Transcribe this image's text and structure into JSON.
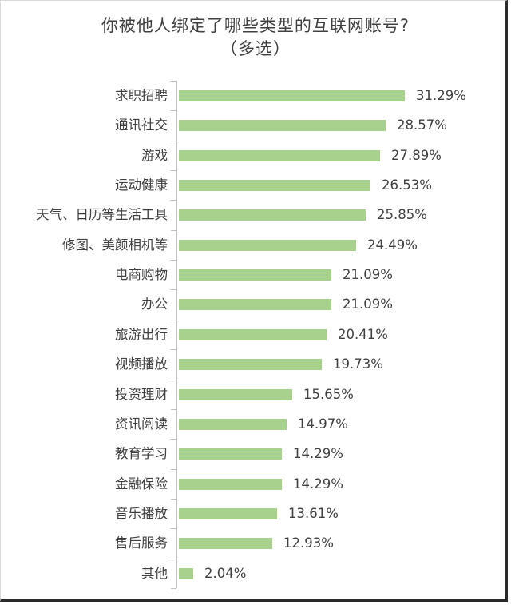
{
  "chart_data": {
    "type": "bar",
    "orientation": "horizontal",
    "title": "你被他人绑定了哪些类型的互联网账号?",
    "subtitle": "（多选）",
    "xlabel": "",
    "ylabel": "",
    "grid": false,
    "legend": null,
    "bar_color": "#a9d18e",
    "value_format": "percent",
    "xlim": [
      0,
      35
    ],
    "categories": [
      "求职招聘",
      "通讯社交",
      "游戏",
      "运动健康",
      "天气、日历等生活工具",
      "修图、美颜相机等",
      "电商购物",
      "办公",
      "旅游出行",
      "视频播放",
      "投资理财",
      "资讯阅读",
      "教育学习",
      "金融保险",
      "音乐播放",
      "售后服务",
      "其他"
    ],
    "values": [
      31.29,
      28.57,
      27.89,
      26.53,
      25.85,
      24.49,
      21.09,
      21.09,
      20.41,
      19.73,
      15.65,
      14.97,
      14.29,
      14.29,
      13.61,
      12.93,
      2.04
    ],
    "labels": [
      "31.29%",
      "28.57%",
      "27.89%",
      "26.53%",
      "25.85%",
      "24.49%",
      "21.09%",
      "21.09%",
      "20.41%",
      "19.73%",
      "15.65%",
      "14.97%",
      "14.29%",
      "14.29%",
      "13.61%",
      "12.93%",
      "2.04%"
    ]
  }
}
